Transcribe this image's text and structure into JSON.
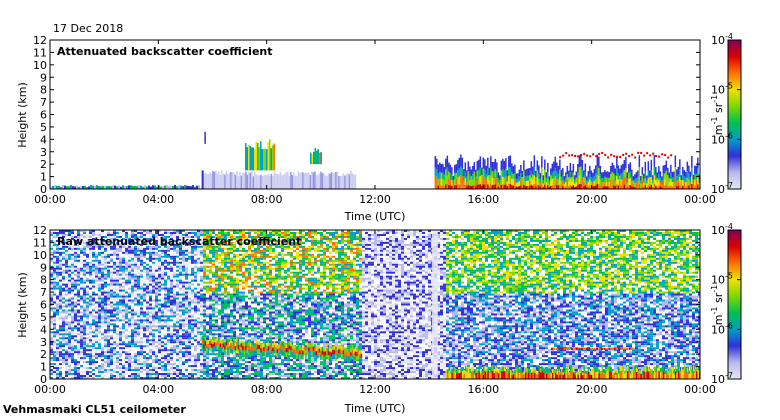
{
  "date": "17 Dec 2018",
  "instrument": "Vehmasmaki CL51 ceilometer",
  "colorbar": {
    "unit_base": "m",
    "unit_exp1": "-1",
    "unit_mid": "sr",
    "unit_exp2": "-1",
    "tick_base": "10",
    "exponents": [
      "-4",
      "-5",
      "-6",
      "-7"
    ]
  },
  "colors": {
    "colormap": [
      "#e8e8f4",
      "#b8b8f0",
      "#3030d8",
      "#00a0c8",
      "#00c050",
      "#80d800",
      "#f0e000",
      "#ff7000",
      "#d80000",
      "#800060"
    ]
  },
  "chart_data": [
    {
      "type": "heatmap",
      "title": "Attenuated backscatter coefficient",
      "xlabel": "Time (UTC)",
      "ylabel": "Height (km)",
      "x_ticks": [
        "00:00",
        "04:00",
        "08:00",
        "12:00",
        "16:00",
        "20:00",
        "00:00"
      ],
      "y_ticks": [
        "0",
        "1",
        "2",
        "3",
        "4",
        "5",
        "6",
        "7",
        "8",
        "9",
        "10",
        "11",
        "12"
      ],
      "xlim_hours": [
        0,
        24
      ],
      "ylim_km": [
        0,
        12
      ],
      "colorbar_range": [
        1e-07,
        0.0001
      ],
      "features": [
        {
          "kind": "surface_layer",
          "t_start": 0,
          "t_end": 5.5,
          "top_km": 0.3
        },
        {
          "kind": "cloud_layer",
          "t_start": 5.6,
          "t_end": 11.3,
          "base_km": 0.3,
          "top_km": 1.5
        },
        {
          "kind": "precip_streaks",
          "t_start": 7.2,
          "t_end": 8.3,
          "base_km": 1.5,
          "top_km": 4.0
        },
        {
          "kind": "precip_streaks",
          "t_start": 9.6,
          "t_end": 10.0,
          "base_km": 2.0,
          "top_km": 3.5
        },
        {
          "kind": "elevated_layer",
          "t_start": 14.2,
          "t_end": 24,
          "base_km": 0.2,
          "top_km": 3.0
        }
      ]
    },
    {
      "type": "heatmap",
      "title": "Raw attenuated backscatter coefficient",
      "xlabel": "Time (UTC)",
      "ylabel": "Height (km)",
      "x_ticks": [
        "00:00",
        "04:00",
        "08:00",
        "12:00",
        "16:00",
        "20:00",
        "00:00"
      ],
      "y_ticks": [
        "0",
        "1",
        "2",
        "3",
        "4",
        "5",
        "6",
        "7",
        "8",
        "9",
        "10",
        "11",
        "12"
      ],
      "xlim_hours": [
        0,
        24
      ],
      "ylim_km": [
        0,
        12
      ],
      "colorbar_range": [
        1e-07,
        0.0001
      ],
      "features": [
        {
          "kind": "noise_background",
          "t_start": 0,
          "t_end": 24
        },
        {
          "kind": "bright_layer",
          "t_start": 5.6,
          "t_end": 11.5,
          "base_km": 1.5,
          "top_km": 3.0
        },
        {
          "kind": "surface_layer",
          "t_start": 14.6,
          "t_end": 24,
          "top_km": 1.0
        },
        {
          "kind": "thin_layer",
          "t_start": 18.5,
          "t_end": 21.5,
          "height_km": 2.5
        }
      ]
    }
  ]
}
